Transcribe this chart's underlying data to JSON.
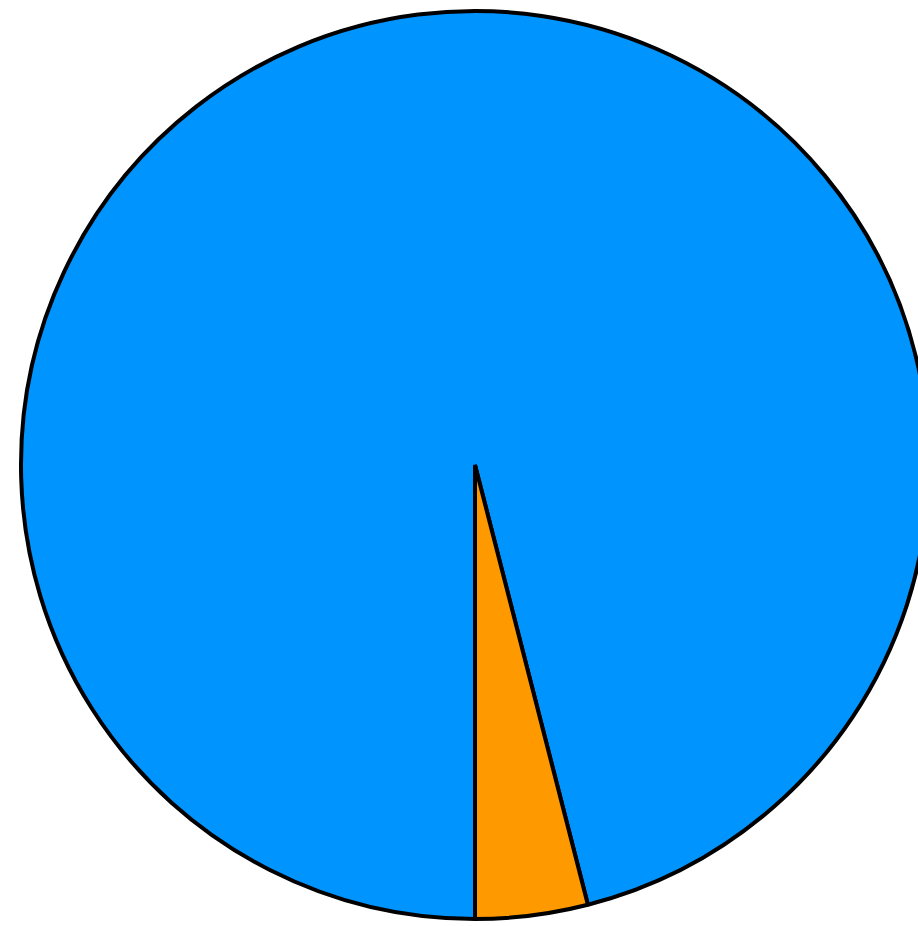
{
  "chart_data": {
    "type": "pie",
    "categories": [
      null,
      null
    ],
    "values": [
      96,
      4
    ],
    "colors": [
      "#0094ff",
      "#ff9900"
    ]
  }
}
